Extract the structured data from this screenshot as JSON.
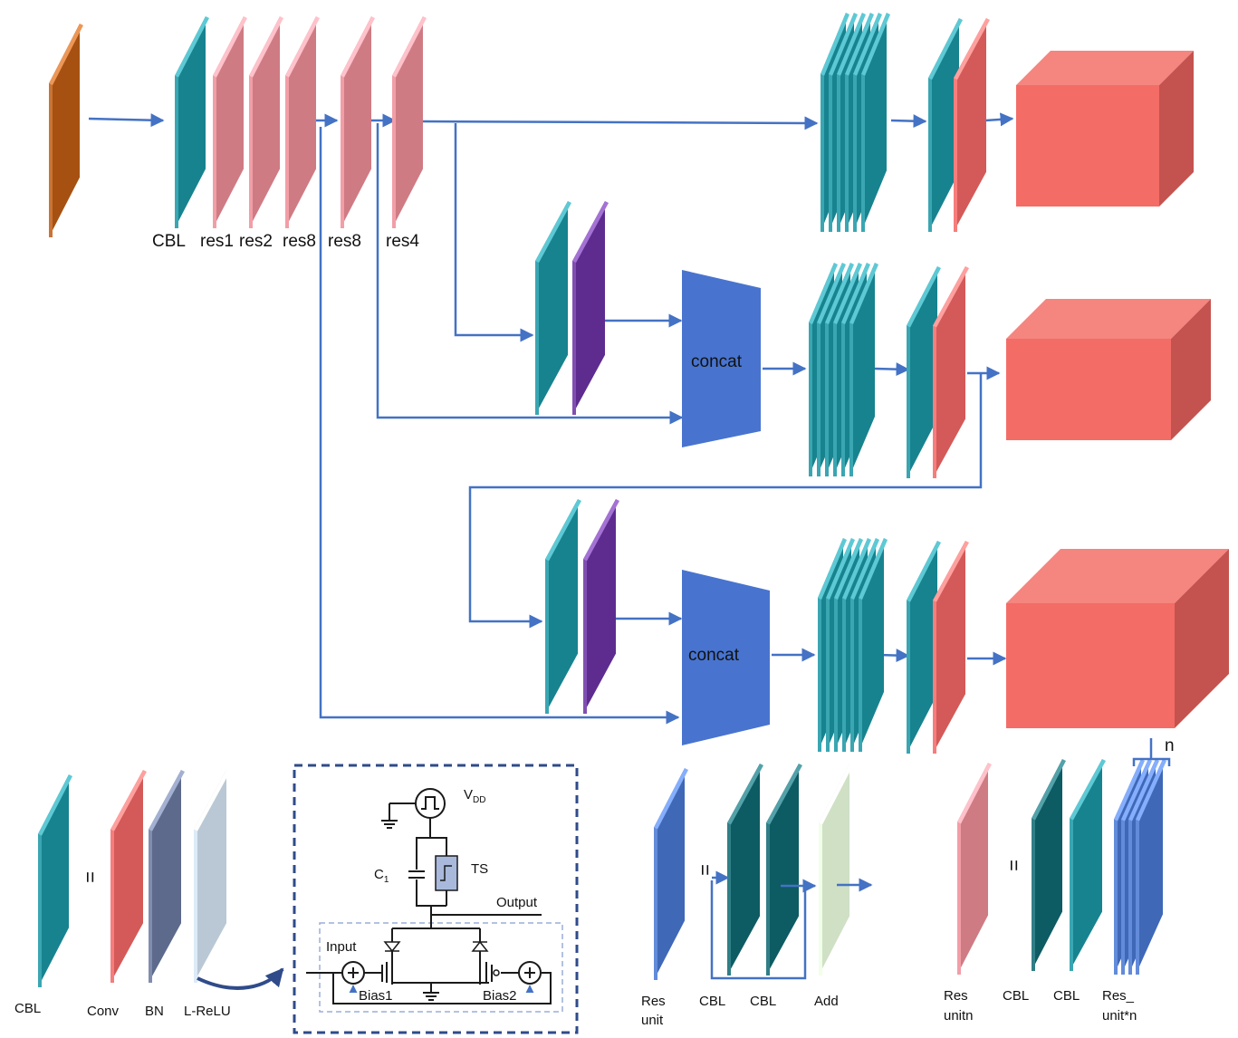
{
  "colors": {
    "input": "#a65111",
    "cbl": "#17838f",
    "res": "#cf7b84",
    "conv": "#d35a58",
    "bn": "#5d6a8c",
    "lrelu": "#b9c8d4",
    "upsample": "#5e2c8f",
    "concat": "#4874cf",
    "output": "#f46c66",
    "arrow": "#4472c4",
    "dark_cbl": "#0d5b63",
    "res_unit": "#3f68b7",
    "add": "#cfe0c5"
  },
  "backbone_labels": [
    "CBL",
    "res1",
    "res2",
    "res8",
    "res8",
    "res4"
  ],
  "concat_labels": [
    "concat",
    "concat"
  ],
  "legend": {
    "cbl_eq": [
      "CBL",
      "Conv",
      "BN",
      "L-ReLU"
    ],
    "res_unit_eq": [
      "Res\nunit",
      "CBL",
      "CBL",
      "Add"
    ],
    "resn_eq": [
      "Res\nunitn",
      "CBL",
      "CBL",
      "Res_\nunit*n"
    ],
    "n_label": "n",
    "eq_symbol": "="
  },
  "circuit": {
    "vdd": "V",
    "vdd_sub": "DD",
    "ts": "TS",
    "cap": "C",
    "cap_sub": "1",
    "output": "Output",
    "input": "Input",
    "bias1": "Bias1",
    "bias2": "Bias2"
  }
}
